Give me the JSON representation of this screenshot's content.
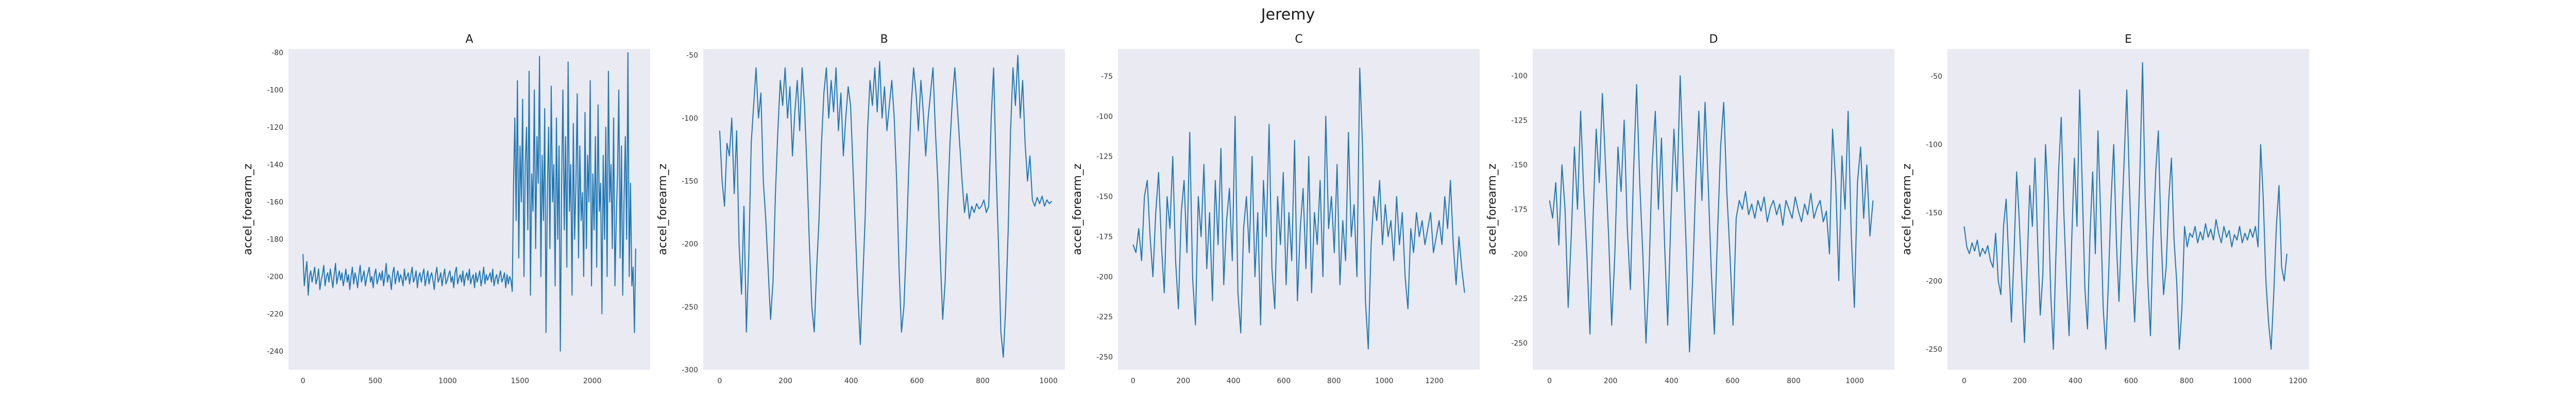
{
  "title": "Jeremy",
  "colors": {
    "background": "#eaeaf2",
    "line": "#1f77b4"
  },
  "chart_data": [
    {
      "type": "line",
      "title": "A",
      "xlabel": "",
      "ylabel": "accel_forearm_z",
      "xlim": [
        -100,
        2400
      ],
      "ylim": [
        -250,
        -78
      ],
      "xticks": [
        0,
        500,
        1000,
        1500,
        2000
      ],
      "yticks": [
        -80,
        -100,
        -120,
        -140,
        -160,
        -180,
        -200,
        -220,
        -240
      ],
      "grid": false,
      "y": [
        -188,
        -205,
        -198,
        -192,
        -210,
        -200,
        -197,
        -203,
        -199,
        -195,
        -204,
        -201,
        -196,
        -207,
        -202,
        -199,
        -194,
        -205,
        -200,
        -198,
        -203,
        -196,
        -201,
        -206,
        -199,
        -193,
        -204,
        -200,
        -197,
        -202,
        -198,
        -205,
        -201,
        -196,
        -203,
        -199,
        -207,
        -200,
        -195,
        -204,
        -198,
        -201,
        -206,
        -199,
        -194,
        -203,
        -200,
        -197,
        -205,
        -201,
        -198,
        -195,
        -203,
        -200,
        -206,
        -199,
        -196,
        -204,
        -201,
        -198,
        -202,
        -197,
        -205,
        -200,
        -193,
        -203,
        -199,
        -201,
        -207,
        -198,
        -195,
        -204,
        -200,
        -197,
        -203,
        -199,
        -201,
        -205,
        -196,
        -202,
        -200,
        -198,
        -204,
        -199,
        -195,
        -203,
        -201,
        -197,
        -206,
        -200,
        -198,
        -203,
        -199,
        -196,
        -205,
        -201,
        -197,
        -204,
        -200,
        -198,
        -202,
        -207,
        -199,
        -195,
        -203,
        -201,
        -198,
        -205,
        -200,
        -196,
        -204,
        -202,
        -199,
        -197,
        -203,
        -200,
        -206,
        -198,
        -195,
        -204,
        -201,
        -199,
        -203,
        -197,
        -205,
        -200,
        -198,
        -202,
        -196,
        -204,
        -201,
        -199,
        -206,
        -198,
        -203,
        -200,
        -197,
        -205,
        -201,
        -195,
        -204,
        -199,
        -202,
        -200,
        -198,
        -203,
        -196,
        -205,
        -201,
        -199,
        -204,
        -200,
        -197,
        -203,
        -201,
        -198,
        -206,
        -199,
        -204,
        -200,
        -202,
        -208,
        -150,
        -115,
        -170,
        -95,
        -190,
        -130,
        -160,
        -105,
        -200,
        -140,
        -120,
        -175,
        -90,
        -210,
        -145,
        -165,
        -100,
        -185,
        -125,
        -150,
        -82,
        -200,
        -135,
        -170,
        -110,
        -230,
        -155,
        -120,
        -185,
        -98,
        -160,
        -140,
        -205,
        -115,
        -180,
        -130,
        -240,
        -150,
        -100,
        -175,
        -125,
        -195,
        -85,
        -165,
        -140,
        -210,
        -118,
        -180,
        -150,
        -102,
        -190,
        -130,
        -170,
        -155,
        -200,
        -112,
        -185,
        -135,
        -160,
        -95,
        -205,
        -145,
        -175,
        -125,
        -195,
        -108,
        -165,
        -150,
        -220,
        -135,
        -180,
        -120,
        -200,
        -90,
        -160,
        -140,
        -185,
        -115,
        -205,
        -170,
        -145,
        -100,
        -190,
        -130,
        -210,
        -160,
        -125,
        -180,
        -80,
        -200,
        -150,
        -205,
        -195,
        -230,
        -185
      ]
    },
    {
      "type": "line",
      "title": "B",
      "xlabel": "",
      "ylabel": "accel_forearm_z",
      "xlim": [
        -50,
        1050
      ],
      "ylim": [
        -300,
        -45
      ],
      "xticks": [
        0,
        200,
        400,
        600,
        800,
        1000
      ],
      "yticks": [
        -50,
        -100,
        -150,
        -200,
        -250,
        -300
      ],
      "grid": false,
      "y": [
        -110,
        -150,
        -170,
        -120,
        -130,
        -100,
        -160,
        -110,
        -200,
        -240,
        -170,
        -270,
        -210,
        -120,
        -90,
        -60,
        -100,
        -80,
        -150,
        -180,
        -220,
        -260,
        -230,
        -160,
        -110,
        -70,
        -90,
        -60,
        -100,
        -75,
        -130,
        -95,
        -70,
        -110,
        -60,
        -90,
        -140,
        -200,
        -250,
        -270,
        -220,
        -180,
        -120,
        -80,
        -60,
        -100,
        -70,
        -95,
        -60,
        -110,
        -80,
        -130,
        -100,
        -75,
        -90,
        -140,
        -190,
        -240,
        -280,
        -230,
        -180,
        -110,
        -70,
        -90,
        -60,
        -95,
        -55,
        -100,
        -75,
        -110,
        -90,
        -70,
        -100,
        -150,
        -220,
        -270,
        -250,
        -200,
        -140,
        -90,
        -60,
        -80,
        -110,
        -70,
        -95,
        -130,
        -100,
        -80,
        -60,
        -110,
        -150,
        -210,
        -260,
        -230,
        -170,
        -120,
        -85,
        -60,
        -90,
        -120,
        -150,
        -175,
        -160,
        -180,
        -170,
        -175,
        -168,
        -172,
        -170,
        -165,
        -175,
        -170,
        -100,
        -60,
        -140,
        -200,
        -270,
        -290,
        -250,
        -190,
        -110,
        -60,
        -90,
        -50,
        -100,
        -70,
        -120,
        -150,
        -130,
        -165,
        -170,
        -163,
        -168,
        -162,
        -170,
        -165,
        -168,
        -166
      ]
    },
    {
      "type": "line",
      "title": "C",
      "xlabel": "",
      "ylabel": "accel_forearm_z",
      "xlim": [
        -60,
        1380
      ],
      "ylim": [
        -258,
        -58
      ],
      "xticks": [
        0,
        200,
        400,
        600,
        800,
        1000,
        1200
      ],
      "yticks": [
        -75,
        -100,
        -125,
        -150,
        -175,
        -200,
        -225,
        -250
      ],
      "grid": false,
      "y": [
        -180,
        -185,
        -170,
        -190,
        -150,
        -140,
        -175,
        -200,
        -160,
        -135,
        -180,
        -210,
        -150,
        -170,
        -125,
        -190,
        -220,
        -160,
        -140,
        -185,
        -110,
        -200,
        -230,
        -150,
        -175,
        -130,
        -195,
        -160,
        -215,
        -140,
        -180,
        -120,
        -205,
        -165,
        -145,
        -190,
        -100,
        -210,
        -235,
        -170,
        -150,
        -185,
        -125,
        -200,
        -160,
        -230,
        -140,
        -175,
        -105,
        -195,
        -220,
        -150,
        -180,
        -135,
        -205,
        -160,
        -190,
        -115,
        -215,
        -170,
        -145,
        -195,
        -125,
        -210,
        -160,
        -180,
        -140,
        -200,
        -100,
        -170,
        -150,
        -185,
        -130,
        -205,
        -165,
        -190,
        -110,
        -175,
        -155,
        -200,
        -70,
        -120,
        -215,
        -245,
        -180,
        -150,
        -165,
        -140,
        -180,
        -155,
        -175,
        -165,
        -190,
        -150,
        -180,
        -160,
        -200,
        -220,
        -170,
        -185,
        -160,
        -175,
        -165,
        -180,
        -170,
        -160,
        -185,
        -175,
        -165,
        -180,
        -150,
        -170,
        -140,
        -180,
        -205,
        -175,
        -195,
        -210
      ]
    },
    {
      "type": "line",
      "title": "D",
      "xlabel": "",
      "ylabel": "accel_forearm_z",
      "xlim": [
        -55,
        1130
      ],
      "ylim": [
        -265,
        -85
      ],
      "xticks": [
        0,
        200,
        400,
        600,
        800,
        1000
      ],
      "yticks": [
        -100,
        -125,
        -150,
        -175,
        -200,
        -225,
        -250
      ],
      "grid": false,
      "y": [
        -170,
        -180,
        -160,
        -195,
        -150,
        -175,
        -230,
        -190,
        -140,
        -175,
        -120,
        -165,
        -200,
        -245,
        -180,
        -130,
        -160,
        -110,
        -150,
        -190,
        -240,
        -200,
        -140,
        -165,
        -125,
        -185,
        -220,
        -155,
        -105,
        -160,
        -200,
        -250,
        -210,
        -150,
        -120,
        -175,
        -135,
        -195,
        -240,
        -180,
        -130,
        -165,
        -100,
        -150,
        -200,
        -255,
        -215,
        -160,
        -120,
        -170,
        -115,
        -160,
        -210,
        -245,
        -190,
        -140,
        -115,
        -165,
        -200,
        -240,
        -180,
        -170,
        -175,
        -165,
        -178,
        -172,
        -180,
        -170,
        -176,
        -168,
        -182,
        -174,
        -170,
        -178,
        -172,
        -184,
        -170,
        -175,
        -180,
        -168,
        -176,
        -182,
        -172,
        -178,
        -166,
        -180,
        -174,
        -170,
        -182,
        -176,
        -200,
        -130,
        -160,
        -215,
        -145,
        -175,
        -120,
        -190,
        -230,
        -160,
        -140,
        -180,
        -150,
        -190,
        -170
      ]
    },
    {
      "type": "line",
      "title": "E",
      "xlabel": "",
      "ylabel": "accel_forearm_z",
      "xlim": [
        -60,
        1240
      ],
      "ylim": [
        -265,
        -30
      ],
      "xticks": [
        0,
        200,
        400,
        600,
        800,
        1000,
        1200
      ],
      "yticks": [
        -50,
        -100,
        -150,
        -200,
        -250
      ],
      "grid": false,
      "y": [
        -160,
        -175,
        -180,
        -172,
        -178,
        -170,
        -182,
        -176,
        -180,
        -174,
        -185,
        -190,
        -165,
        -200,
        -210,
        -160,
        -140,
        -185,
        -230,
        -180,
        -120,
        -155,
        -200,
        -245,
        -190,
        -130,
        -160,
        -110,
        -170,
        -225,
        -195,
        -100,
        -140,
        -210,
        -250,
        -180,
        -120,
        -80,
        -150,
        -200,
        -240,
        -170,
        -110,
        -160,
        -60,
        -130,
        -205,
        -235,
        -165,
        -120,
        -180,
        -90,
        -150,
        -220,
        -250,
        -200,
        -140,
        -100,
        -170,
        -215,
        -160,
        -110,
        -60,
        -130,
        -190,
        -230,
        -180,
        -120,
        -40,
        -140,
        -200,
        -240,
        -170,
        -120,
        -90,
        -165,
        -210,
        -190,
        -140,
        -110,
        -170,
        -200,
        -250,
        -220,
        -160,
        -175,
        -165,
        -168,
        -160,
        -172,
        -164,
        -170,
        -158,
        -168,
        -162,
        -170,
        -155,
        -165,
        -172,
        -160,
        -168,
        -163,
        -175,
        -166,
        -170,
        -160,
        -172,
        -165,
        -170,
        -162,
        -168,
        -160,
        -175,
        -100,
        -140,
        -200,
        -230,
        -250,
        -210,
        -160,
        -130,
        -190,
        -200,
        -180
      ]
    }
  ]
}
